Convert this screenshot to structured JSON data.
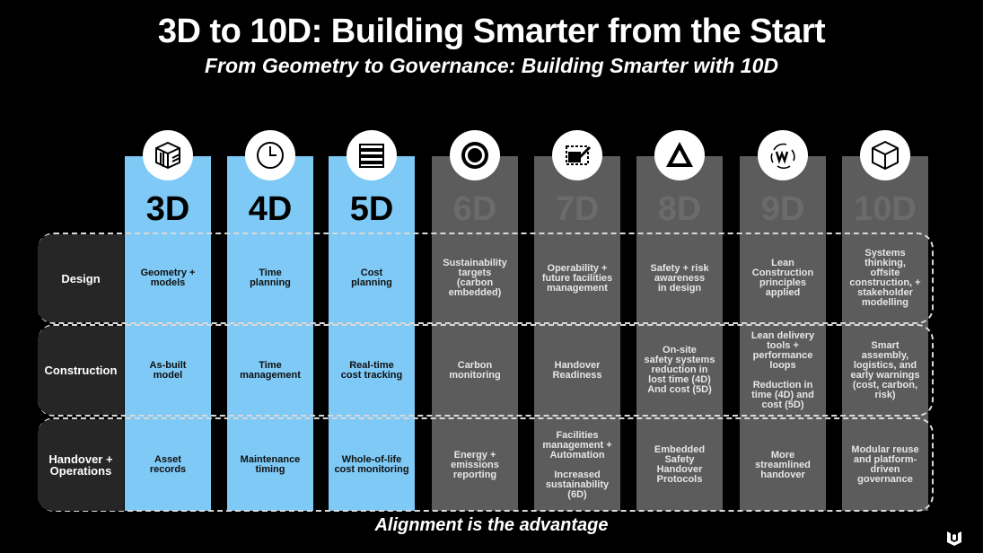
{
  "header": {
    "title": "3D to 10D: Building Smarter from the Start",
    "subtitle": "From Geometry to Governance: Building Smarter with 10D"
  },
  "footer": {
    "text": "Alignment is the advantage"
  },
  "colors": {
    "active": "#7ec9f5",
    "inactive": "#5c5c5c",
    "background": "#000000"
  },
  "rows": [
    "Design",
    "Construction",
    "Handover +\nOperations"
  ],
  "columns": [
    {
      "label": "3D",
      "icon": "cube-layers-icon",
      "active": true,
      "cells": [
        "Geometry +\nmodels",
        "As-built\nmodel",
        "Asset\nrecords"
      ]
    },
    {
      "label": "4D",
      "icon": "clock-icon",
      "active": true,
      "cells": [
        "Time\nplanning",
        "Time\nmanagement",
        "Maintenance\ntiming"
      ]
    },
    {
      "label": "5D",
      "icon": "money-stack-icon",
      "active": true,
      "cells": [
        "Cost\nplanning",
        "Real-time\ncost tracking",
        "Whole-of-life\ncost monitoring"
      ]
    },
    {
      "label": "6D",
      "icon": "target-icon",
      "active": false,
      "cells": [
        "Sustainability\ntargets\n(carbon\nembedded)",
        "Carbon\nmonitoring",
        "Energy +\nemissions\nreporting"
      ]
    },
    {
      "label": "7D",
      "icon": "checklist-icon",
      "active": false,
      "cells": [
        "Operability +\nfuture facilities\nmanagement",
        "Handover\nReadiness",
        "Facilities\nmanagement  +\nAutomation\n\nIncreased\nsustainability\n(6D)"
      ]
    },
    {
      "label": "8D",
      "icon": "warning-triangle-icon",
      "active": false,
      "cells": [
        "Safety + risk\nawareness\nin design",
        "On-site\nsafety systems\nreduction in\nlost time (4D)\nAnd cost (5D)",
        "Embedded\nSafety\nHandover\nProtocols"
      ]
    },
    {
      "label": "9D",
      "icon": "lean-cycle-icon",
      "active": false,
      "cells": [
        "Lean\nConstruction\nprinciples\napplied",
        "Lean delivery\ntools +\nperformance\nloops\n\nReduction in\ntime (4D) and\ncost (5D)",
        "More\nstreamlined\nhandover"
      ]
    },
    {
      "label": "10D",
      "icon": "cube-icon",
      "active": false,
      "cells": [
        "Systems\nthinking,\noffsite\nconstruction, +\nstakeholder\nmodelling",
        "Smart\nassembly,\nlogistics, and\nearly warnings\n(cost, carbon,\nrisk)",
        "Modular reuse\nand platform-\ndriven\ngovernance"
      ]
    }
  ]
}
